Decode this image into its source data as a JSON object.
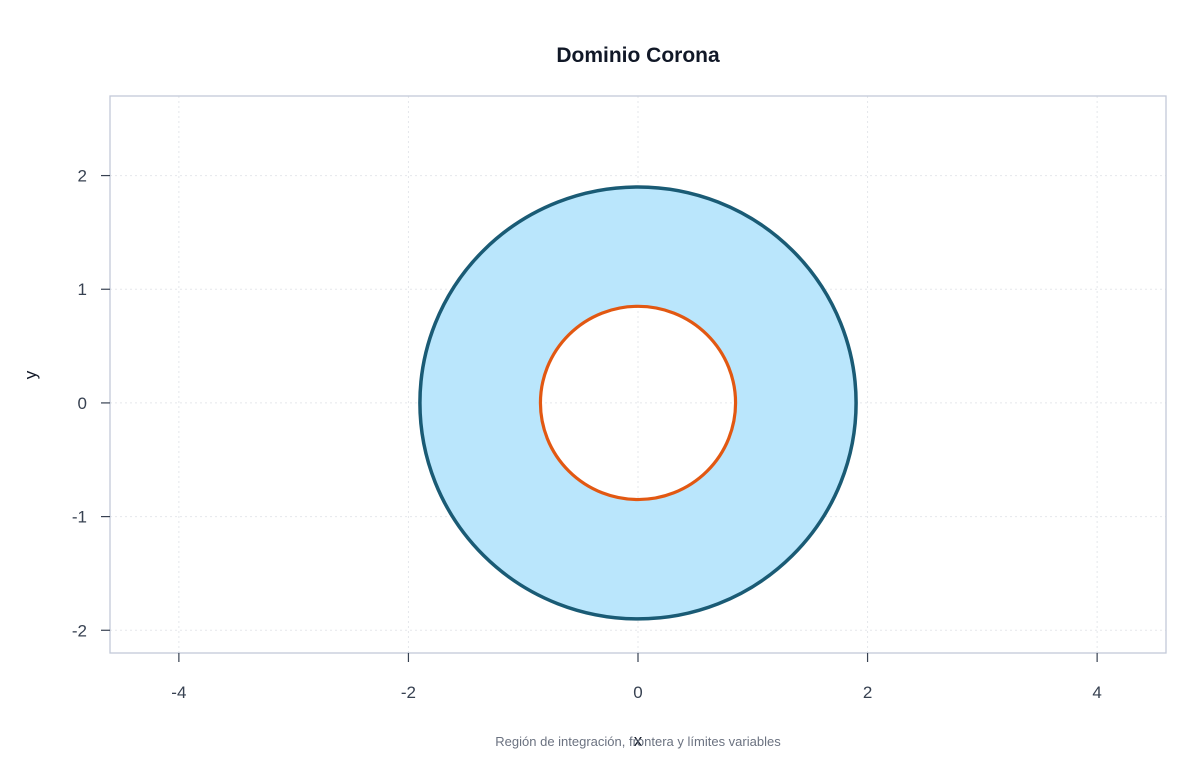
{
  "chart_data": {
    "type": "area",
    "title": "Dominio Corona",
    "xlabel": "x",
    "ylabel": "y",
    "caption": "Región de integración, frontera y límites variables",
    "xlim": [
      -4.6,
      4.6
    ],
    "ylim": [
      -2.2,
      2.7
    ],
    "xticks": [
      -4,
      -2,
      0,
      2,
      4
    ],
    "yticks": [
      -2,
      -1,
      0,
      1,
      2
    ],
    "grid": true,
    "series": [
      {
        "shape": "annulus",
        "center": [
          0,
          0
        ],
        "inner_radius": 0.85,
        "outer_radius": 1.9,
        "fill": "#bae6fc",
        "outer_stroke": "#1a5b75",
        "inner_stroke": "#e25812"
      }
    ],
    "colors": {
      "frame": "#c2cad8",
      "grid": "#e5e7eb",
      "tick_text": "#374151"
    }
  }
}
